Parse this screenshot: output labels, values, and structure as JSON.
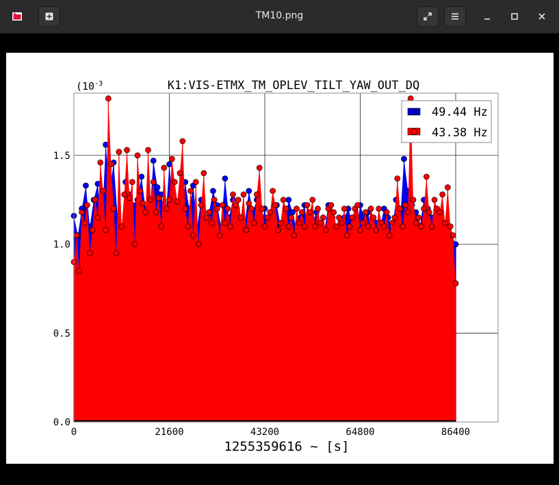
{
  "window": {
    "title": "TM10.png",
    "new_tab_icon": "plus-icon",
    "fullscreen_icon": "expand-icon",
    "menu_icon": "hamburger-icon",
    "minimize_icon": "minimize-icon",
    "maximize_icon": "maximize-icon",
    "close_icon": "close-icon"
  },
  "chart_data": {
    "type": "scatter",
    "title": "K1:VIS-ETMX_TM_OPLEV_TILT_YAW_OUT_DQ",
    "xlabel": "1255359616 ~ [s]",
    "ylabel": "",
    "y_exponent_label": "(10",
    "y_exponent_power": "-3",
    "xlim": [
      0,
      96000
    ],
    "ylim": [
      0,
      1.85
    ],
    "x_ticks": [
      0,
      21600,
      43200,
      64800,
      86400
    ],
    "x_tick_labels": [
      "0",
      "21600",
      "43200",
      "64800",
      "86400"
    ],
    "y_ticks": [
      0,
      0.5,
      1.0,
      1.5
    ],
    "y_tick_labels": [
      "0.0",
      "0.5",
      "1.0",
      "1.5"
    ],
    "grid": true,
    "legend_position": "top-right",
    "stems": true,
    "series": [
      {
        "name": "49.44 Hz",
        "color": "#0000ff",
        "x": [
          0,
          900,
          1800,
          2700,
          3600,
          4500,
          5400,
          6300,
          7200,
          8100,
          9000,
          9900,
          10800,
          11700,
          12600,
          13500,
          14400,
          15300,
          16200,
          17100,
          18000,
          18900,
          19800,
          20700,
          21600,
          22500,
          23400,
          24300,
          25200,
          26100,
          27000,
          27900,
          28800,
          29700,
          30600,
          31500,
          32400,
          33300,
          34200,
          35100,
          36000,
          36900,
          37800,
          38700,
          39600,
          40500,
          41400,
          42300,
          43200,
          44100,
          45000,
          45900,
          46800,
          47700,
          48600,
          49500,
          50400,
          51300,
          52200,
          53100,
          54000,
          54900,
          55800,
          56700,
          57600,
          58500,
          59400,
          60300,
          61200,
          62100,
          63000,
          63900,
          64800,
          65700,
          66600,
          67500,
          68400,
          69300,
          70200,
          71100,
          72000,
          72900,
          73800,
          74700,
          75600,
          76500,
          77400,
          78300,
          79200,
          80100,
          81000,
          81900,
          82800,
          83700,
          84600,
          85500,
          86400
        ],
        "y": [
          1.16,
          1.05,
          1.2,
          1.33,
          1.1,
          1.25,
          1.34,
          1.08,
          1.56,
          1.3,
          1.46,
          1.15,
          1.05,
          1.35,
          1.28,
          1.22,
          1.25,
          1.38,
          1.2,
          1.15,
          1.47,
          1.32,
          1.28,
          1.12,
          1.45,
          1.2,
          1.22,
          1.12,
          1.35,
          1.2,
          1.33,
          1.1,
          1.25,
          1.05,
          1.18,
          1.3,
          1.22,
          1.1,
          1.37,
          1.15,
          1.25,
          1.2,
          1.08,
          1.12,
          1.3,
          1.18,
          1.25,
          1.1,
          1.2,
          1.05,
          1.15,
          1.22,
          1.1,
          1.12,
          1.25,
          1.18,
          1.08,
          1.15,
          1.22,
          1.05,
          1.12,
          1.18,
          1.1,
          1.08,
          1.22,
          1.15,
          1.05,
          1.1,
          1.15,
          1.2,
          1.12,
          1.08,
          1.22,
          1.15,
          1.18,
          1.05,
          1.12,
          1.1,
          1.2,
          1.15,
          1.08,
          1.25,
          1.12,
          1.48,
          1.3,
          1.22,
          1.18,
          1.1,
          1.25,
          1.2,
          1.15,
          1.08,
          1.12,
          1.05,
          1.1,
          1.05,
          1.0
        ]
      },
      {
        "name": "43.38 Hz",
        "color": "#ff0000",
        "x": [
          0,
          600,
          1200,
          1800,
          2400,
          3000,
          3600,
          4200,
          4800,
          5400,
          6000,
          6600,
          7200,
          7800,
          8400,
          9000,
          9600,
          10200,
          10800,
          11400,
          12000,
          12600,
          13200,
          13800,
          14400,
          15000,
          15600,
          16200,
          16800,
          17400,
          18000,
          18600,
          19200,
          19800,
          20400,
          21000,
          21600,
          22200,
          22800,
          23400,
          24000,
          24600,
          25200,
          25800,
          26400,
          27000,
          27600,
          28200,
          28800,
          29400,
          30000,
          30600,
          31200,
          31800,
          32400,
          33000,
          33600,
          34200,
          34800,
          35400,
          36000,
          36600,
          37200,
          37800,
          38400,
          39000,
          39600,
          40200,
          40800,
          41400,
          42000,
          42600,
          43200,
          43800,
          44400,
          45000,
          45600,
          46200,
          46800,
          47400,
          48000,
          48600,
          49200,
          49800,
          50400,
          51000,
          51600,
          52200,
          52800,
          53400,
          54000,
          54600,
          55200,
          55800,
          56400,
          57000,
          57600,
          58200,
          58800,
          59400,
          60000,
          60600,
          61200,
          61800,
          62400,
          63000,
          63600,
          64200,
          64800,
          65400,
          66000,
          66600,
          67200,
          67800,
          68400,
          69000,
          69600,
          70200,
          70800,
          71400,
          72000,
          72600,
          73200,
          73800,
          74400,
          75000,
          75600,
          76200,
          76800,
          77400,
          78000,
          78600,
          79200,
          79800,
          80400,
          81000,
          81600,
          82200,
          82800,
          83400,
          84000,
          84600,
          85200,
          85800,
          86400
        ],
        "y": [
          0.9,
          1.05,
          0.85,
          1.18,
          1.12,
          1.22,
          0.95,
          1.08,
          1.25,
          1.15,
          1.46,
          1.3,
          1.08,
          1.82,
          1.45,
          1.2,
          0.95,
          1.52,
          1.1,
          1.28,
          1.53,
          1.26,
          1.35,
          1.0,
          1.5,
          1.3,
          1.23,
          1.18,
          1.53,
          1.25,
          1.35,
          1.18,
          1.26,
          1.1,
          1.43,
          1.2,
          1.25,
          1.48,
          1.35,
          1.24,
          1.4,
          1.58,
          1.2,
          1.1,
          1.3,
          1.05,
          1.35,
          1.0,
          1.22,
          1.4,
          1.15,
          1.18,
          1.12,
          1.25,
          1.2,
          1.05,
          1.22,
          1.12,
          1.2,
          1.1,
          1.28,
          1.22,
          1.25,
          1.15,
          1.28,
          1.08,
          1.23,
          1.2,
          1.12,
          1.28,
          1.43,
          1.2,
          1.1,
          1.15,
          1.18,
          1.3,
          1.22,
          1.08,
          1.12,
          1.25,
          1.2,
          1.1,
          1.15,
          1.05,
          1.2,
          1.12,
          1.18,
          1.1,
          1.22,
          1.18,
          1.25,
          1.1,
          1.2,
          1.12,
          1.15,
          1.08,
          1.2,
          1.22,
          1.18,
          1.1,
          1.15,
          1.12,
          1.2,
          1.05,
          1.1,
          1.15,
          1.2,
          1.22,
          1.08,
          1.12,
          1.18,
          1.1,
          1.2,
          1.15,
          1.08,
          1.2,
          1.12,
          1.1,
          1.18,
          1.05,
          1.12,
          1.15,
          1.37,
          1.2,
          1.1,
          1.22,
          1.18,
          1.82,
          1.25,
          1.12,
          1.15,
          1.1,
          1.2,
          1.38,
          1.18,
          1.1,
          1.25,
          1.2,
          1.18,
          1.28,
          1.12,
          1.32,
          1.1,
          1.05,
          0.78
        ]
      }
    ]
  }
}
